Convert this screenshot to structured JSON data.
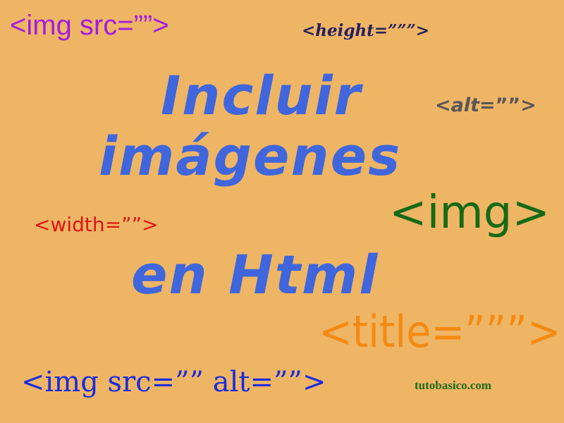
{
  "texts": {
    "tag_img_src": "<img src=””>",
    "tag_height": "<height=”””>",
    "tag_alt_word": "alt",
    "tag_alt_rest": "=””>",
    "tag_alt_open": "<",
    "title_line1": "Incluir",
    "title_line2": "imágenes",
    "title_line3": "en Html",
    "tag_width": "<width=””>",
    "tag_img": "<img>",
    "tag_title": "<title=”””>",
    "tag_img_src_alt": "<img src=”” alt=””>",
    "site": "tutobasico.com"
  },
  "colors": {
    "background": "#EEB565",
    "title": "#3F66DD",
    "img_src": "#A21CE0",
    "height": "#27205C",
    "alt": "#5A5656",
    "width": "#E11414",
    "img": "#166A16",
    "title_tag": "#F58A12",
    "img_src_alt": "#1A2BE0",
    "site": "#1E6A1A"
  }
}
